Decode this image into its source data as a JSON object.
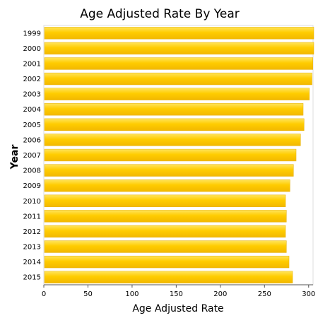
{
  "chart_data": {
    "type": "bar",
    "orientation": "horizontal",
    "title": "Age Adjusted Rate By Year",
    "xlabel": "Age Adjusted Rate",
    "ylabel": "Year",
    "categories": [
      "1999",
      "2000",
      "2001",
      "2002",
      "2003",
      "2004",
      "2005",
      "2006",
      "2007",
      "2008",
      "2009",
      "2010",
      "2011",
      "2012",
      "2013",
      "2014",
      "2015"
    ],
    "values": [
      305,
      305,
      304,
      303,
      300,
      293,
      294,
      290,
      285,
      282,
      278,
      273,
      274,
      273,
      274,
      277,
      281
    ],
    "xlim": [
      0,
      305
    ],
    "xticks": [
      0,
      50,
      100,
      150,
      200,
      250,
      300
    ],
    "grid": false,
    "legend": "none",
    "bar_color": "#FFCC00"
  }
}
